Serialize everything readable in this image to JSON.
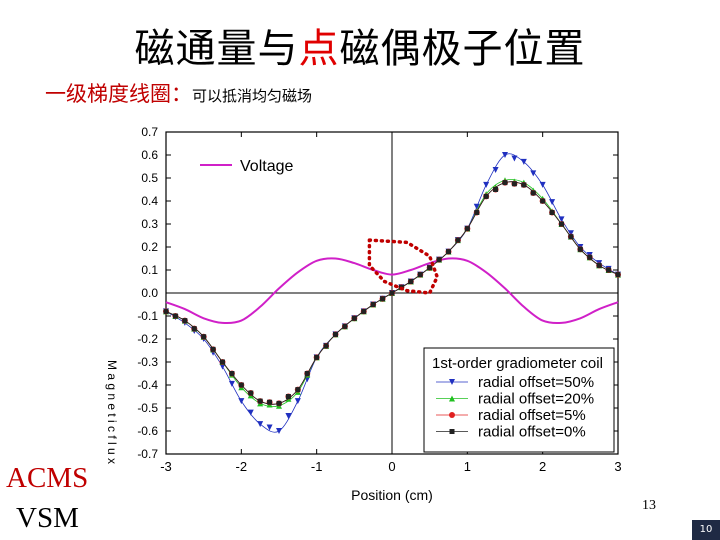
{
  "slide": {
    "title_part1": "磁通量与",
    "title_accent": "点",
    "title_part2": "磁偶极子位置",
    "subtitle_main": "一级梯度线圈：",
    "subtitle_note": "可以抵消均匀磁场",
    "left_label_1": "ACMS",
    "left_label_2": "VSM",
    "page_number": "13",
    "slide_number": "10"
  },
  "chart_data": {
    "type": "line",
    "x_label": "Position (cm)",
    "y_label": "M a g n e t i c  f l u x",
    "xlim": [
      -3,
      3
    ],
    "ylim": [
      -0.7,
      0.7
    ],
    "x_ticks": [
      "-3",
      "-2",
      "-1",
      "0",
      "1",
      "2",
      "3"
    ],
    "y_ticks": [
      "-0.7",
      "-0.6",
      "-0.5",
      "-0.4",
      "-0.3",
      "-0.2",
      "-0.1",
      "0.0",
      "0.1",
      "0.2",
      "0.3",
      "0.4",
      "0.5",
      "0.6",
      "0.7"
    ],
    "grid": false,
    "legend_title": "1st-order gradiometer coil",
    "legend_position": "bottom-right",
    "x": [
      -3.0,
      -2.75,
      -2.5,
      -2.25,
      -2.0,
      -1.75,
      -1.5,
      -1.25,
      -1.0,
      -0.75,
      -0.5,
      -0.25,
      0.0,
      0.25,
      0.5,
      0.75,
      1.0,
      1.25,
      1.5,
      1.75,
      2.0,
      2.25,
      2.5,
      2.75,
      3.0
    ],
    "series": [
      {
        "name": "Voltage",
        "color": "#d020c8",
        "marker": "none",
        "values": [
          -0.04,
          -0.07,
          -0.11,
          -0.13,
          -0.12,
          -0.06,
          0.02,
          0.09,
          0.14,
          0.15,
          0.13,
          0.1,
          0.08,
          0.1,
          0.13,
          0.15,
          0.14,
          0.09,
          0.02,
          -0.06,
          -0.12,
          -0.13,
          -0.11,
          -0.07,
          -0.04
        ]
      },
      {
        "name": "radial offset=50%",
        "color": "#2030c0",
        "marker": "triangle-down",
        "values": [
          -0.08,
          -0.13,
          -0.2,
          -0.32,
          -0.47,
          -0.57,
          -0.6,
          -0.47,
          -0.28,
          -0.18,
          -0.11,
          -0.05,
          0.0,
          0.05,
          0.11,
          0.18,
          0.28,
          0.47,
          0.6,
          0.57,
          0.47,
          0.32,
          0.2,
          0.13,
          0.08
        ]
      },
      {
        "name": "radial offset=20%",
        "color": "#20c020",
        "marker": "triangle-up",
        "values": [
          -0.08,
          -0.12,
          -0.19,
          -0.3,
          -0.41,
          -0.48,
          -0.49,
          -0.43,
          -0.28,
          -0.18,
          -0.11,
          -0.05,
          0.0,
          0.05,
          0.11,
          0.18,
          0.28,
          0.43,
          0.49,
          0.48,
          0.41,
          0.3,
          0.19,
          0.12,
          0.08
        ]
      },
      {
        "name": "radial offset=5%",
        "color": "#e02020",
        "marker": "circle",
        "values": [
          -0.08,
          -0.12,
          -0.19,
          -0.3,
          -0.4,
          -0.47,
          -0.48,
          -0.42,
          -0.28,
          -0.18,
          -0.11,
          -0.05,
          0.0,
          0.05,
          0.11,
          0.18,
          0.28,
          0.42,
          0.48,
          0.47,
          0.4,
          0.3,
          0.19,
          0.12,
          0.08
        ]
      },
      {
        "name": "radial offset=0%",
        "color": "#222222",
        "marker": "square",
        "values": [
          -0.08,
          -0.12,
          -0.19,
          -0.3,
          -0.4,
          -0.47,
          -0.48,
          -0.42,
          -0.28,
          -0.18,
          -0.11,
          -0.05,
          0.0,
          0.05,
          0.11,
          0.18,
          0.28,
          0.42,
          0.48,
          0.47,
          0.4,
          0.3,
          0.19,
          0.12,
          0.08
        ]
      }
    ],
    "annotation": {
      "shape": "dotted-loop",
      "color": "#c00000",
      "points": [
        [
          -0.3,
          0.23
        ],
        [
          0.2,
          0.22
        ],
        [
          0.5,
          0.16
        ],
        [
          0.6,
          0.07
        ],
        [
          0.5,
          0.0
        ],
        [
          0.2,
          0.01
        ],
        [
          -0.1,
          0.05
        ],
        [
          -0.3,
          0.12
        ],
        [
          -0.3,
          0.23
        ]
      ]
    }
  }
}
